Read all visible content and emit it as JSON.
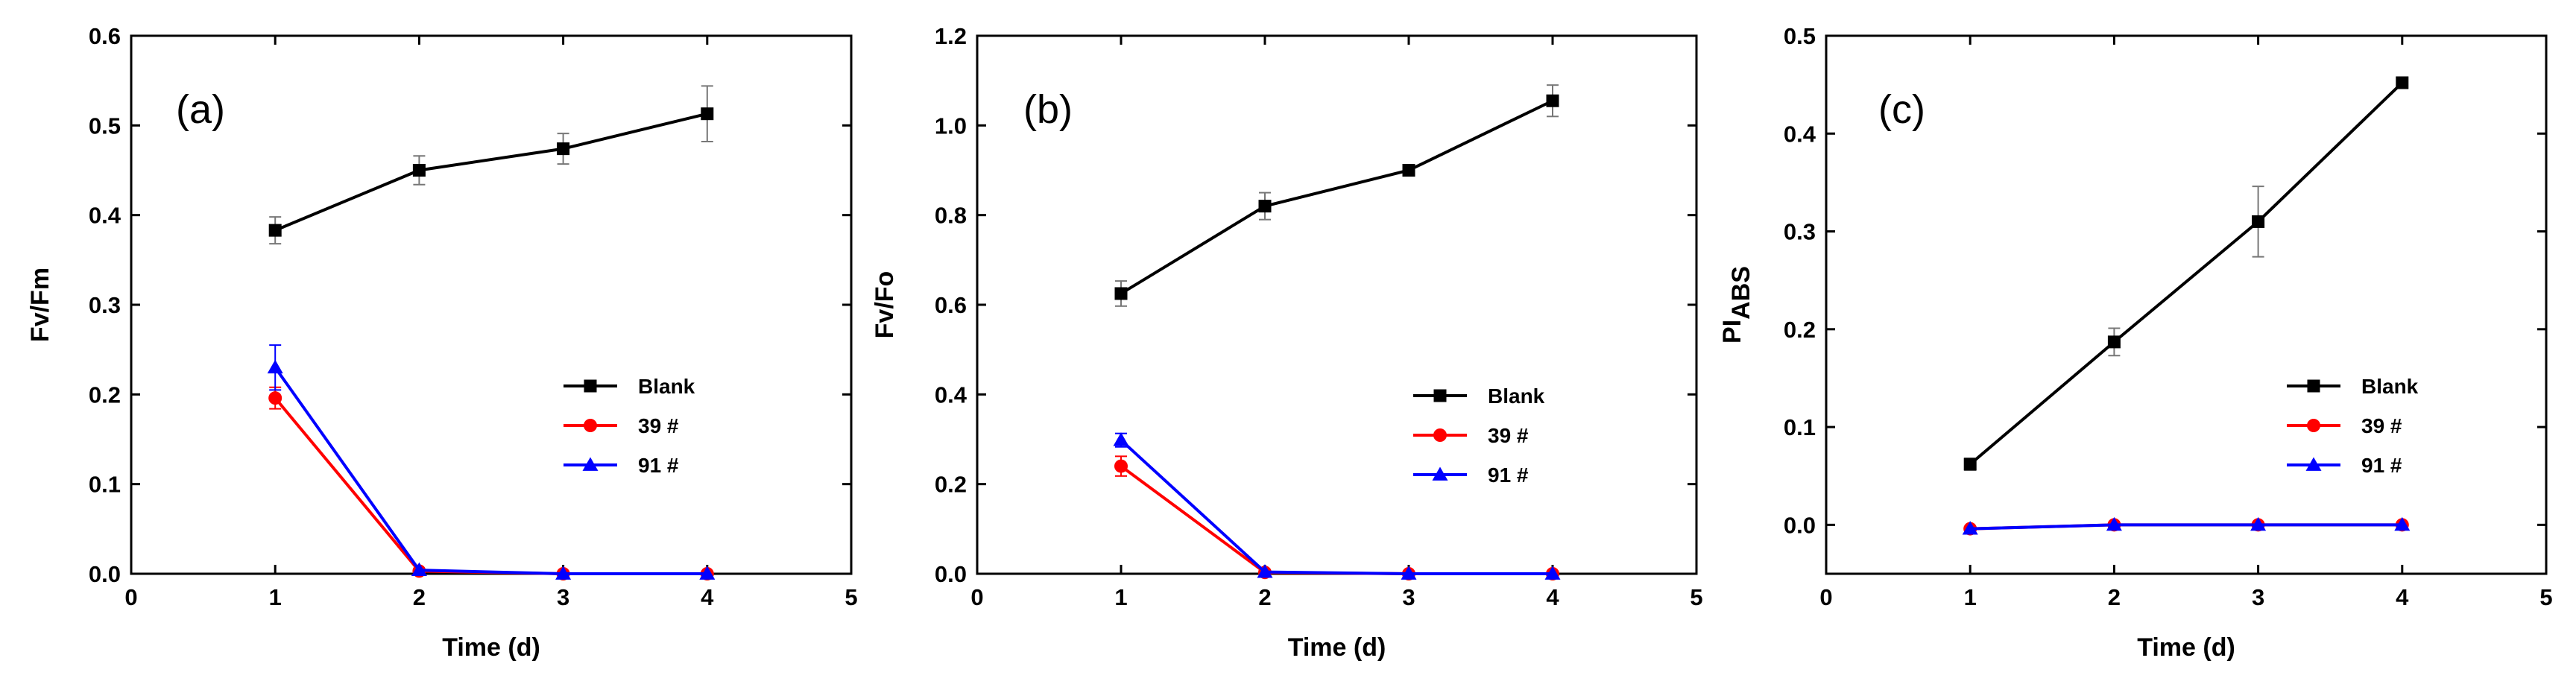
{
  "chart_data": [
    {
      "type": "line",
      "panel_label": "(a)",
      "xlabel": "Time (d)",
      "ylabel": "Fv/Fm",
      "ylabel_sub": "",
      "xlim": [
        0,
        5
      ],
      "ylim": [
        0,
        0.6
      ],
      "xticks": [
        0,
        1,
        2,
        3,
        4,
        5
      ],
      "xtick_labels": [
        "0",
        "1",
        "2",
        "3",
        "4",
        "5"
      ],
      "yticks": [
        0,
        0.1,
        0.2,
        0.3,
        0.4,
        0.5,
        0.6
      ],
      "ytick_labels": [
        "0.0",
        "0.1",
        "0.2",
        "0.3",
        "0.4",
        "0.5",
        "0.6"
      ],
      "legend_position": "right",
      "series": [
        {
          "name": "Blank",
          "color": "#000000",
          "marker": "square",
          "x": [
            1,
            2,
            3,
            4
          ],
          "y": [
            0.383,
            0.45,
            0.474,
            0.513
          ],
          "err": [
            0.015,
            0.016,
            0.017,
            0.031
          ]
        },
        {
          "name": "39 #",
          "color": "#ff0000",
          "marker": "circle",
          "x": [
            1,
            2,
            3,
            4
          ],
          "y": [
            0.196,
            0.003,
            0.0,
            0.0
          ],
          "err": [
            0.012,
            0.0,
            0.0,
            0.0
          ]
        },
        {
          "name": "91 #",
          "color": "#0000ff",
          "marker": "triangle",
          "x": [
            1,
            2,
            3,
            4
          ],
          "y": [
            0.23,
            0.004,
            0.0,
            0.0
          ],
          "err": [
            0.025,
            0.0,
            0.0,
            0.0
          ]
        }
      ]
    },
    {
      "type": "line",
      "panel_label": "(b)",
      "xlabel": "Time (d)",
      "ylabel": "Fv/Fo",
      "ylabel_sub": "",
      "xlim": [
        0,
        5
      ],
      "ylim": [
        0,
        1.2
      ],
      "xticks": [
        0,
        1,
        2,
        3,
        4,
        5
      ],
      "xtick_labels": [
        "0",
        "1",
        "2",
        "3",
        "4",
        "5"
      ],
      "yticks": [
        0,
        0.2,
        0.4,
        0.6,
        0.8,
        1.0,
        1.2
      ],
      "ytick_labels": [
        "0.0",
        "0.2",
        "0.4",
        "0.6",
        "0.8",
        "1.0",
        "1.2"
      ],
      "legend_position": "right",
      "series": [
        {
          "name": "Blank",
          "color": "#000000",
          "marker": "square",
          "x": [
            1,
            2,
            3,
            4
          ],
          "y": [
            0.625,
            0.82,
            0.9,
            1.055
          ],
          "err": [
            0.028,
            0.03,
            0.01,
            0.035
          ]
        },
        {
          "name": "39 #",
          "color": "#ff0000",
          "marker": "circle",
          "x": [
            1,
            2,
            3,
            4
          ],
          "y": [
            0.24,
            0.003,
            0.0,
            0.0
          ],
          "err": [
            0.022,
            0.0,
            0.0,
            0.0
          ]
        },
        {
          "name": "91 #",
          "color": "#0000ff",
          "marker": "triangle",
          "x": [
            1,
            2,
            3,
            4
          ],
          "y": [
            0.298,
            0.004,
            0.0,
            0.0
          ],
          "err": [
            0.015,
            0.0,
            0.0,
            0.0
          ]
        }
      ]
    },
    {
      "type": "line",
      "panel_label": "(c)",
      "xlabel": "Time (d)",
      "ylabel": "PI",
      "ylabel_sub": "ABS",
      "xlim": [
        0,
        5
      ],
      "ylim": [
        -0.05,
        0.5
      ],
      "xticks": [
        0,
        1,
        2,
        3,
        4,
        5
      ],
      "xtick_labels": [
        "0",
        "1",
        "2",
        "3",
        "4",
        "5"
      ],
      "yticks": [
        0,
        0.1,
        0.2,
        0.3,
        0.4,
        0.5
      ],
      "ytick_labels": [
        "0.0",
        "0.1",
        "0.2",
        "0.3",
        "0.4",
        "0.5"
      ],
      "legend_position": "right",
      "series": [
        {
          "name": "Blank",
          "color": "#000000",
          "marker": "square",
          "x": [
            1,
            2,
            3,
            4
          ],
          "y": [
            0.062,
            0.187,
            0.31,
            0.452
          ],
          "err": [
            0.006,
            0.014,
            0.036,
            0.003
          ]
        },
        {
          "name": "39 #",
          "color": "#ff0000",
          "marker": "circle",
          "x": [
            1,
            2,
            3,
            4
          ],
          "y": [
            -0.004,
            0.0,
            0.0,
            0.0
          ],
          "err": [
            0.0,
            0.0,
            0.0,
            0.0
          ]
        },
        {
          "name": "91 #",
          "color": "#0000ff",
          "marker": "triangle",
          "x": [
            1,
            2,
            3,
            4
          ],
          "y": [
            -0.004,
            0.0,
            0.0,
            0.0
          ],
          "err": [
            0.0,
            0.0,
            0.0,
            0.0
          ]
        }
      ]
    }
  ]
}
